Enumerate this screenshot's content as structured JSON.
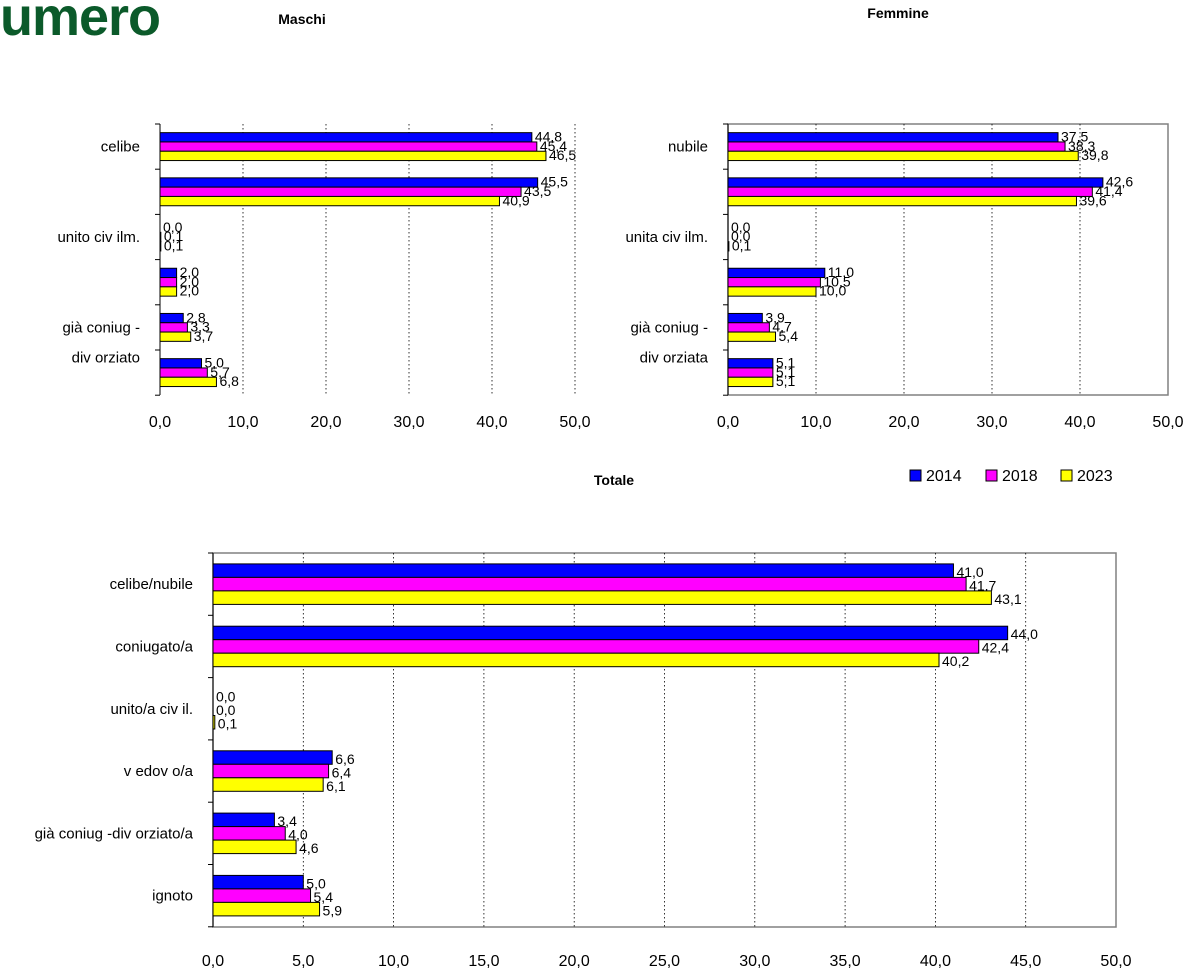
{
  "page": {
    "title": "umero"
  },
  "colors": {
    "2014": "#0000ff",
    "2018": "#ff00ff",
    "2023": "#ffff00",
    "outline": "#000000",
    "frame": "#808080"
  },
  "chart_data": [
    {
      "type": "bar",
      "orientation": "horizontal",
      "title": "Maschi",
      "categories": [
        "celibe",
        "",
        "unito civilm.",
        "",
        "già coniug -divorziato",
        ""
      ],
      "category_labels": [
        {
          "index": 0,
          "text": "celibe"
        },
        {
          "index": 2,
          "text": "unito civ ilm."
        },
        {
          "index": 4,
          "text": [
            "già coniug -",
            "div orziato"
          ]
        }
      ],
      "series": [
        {
          "name": "2014",
          "values": [
            44.8,
            45.5,
            0.0,
            2.0,
            2.8,
            5.0
          ],
          "labels": [
            "44,8",
            "45,5",
            "0,0",
            "2,0",
            "2,8",
            "5,0"
          ]
        },
        {
          "name": "2018",
          "values": [
            45.4,
            43.5,
            0.1,
            2.0,
            3.3,
            5.7
          ],
          "labels": [
            "45,4",
            "43,5",
            "0,1",
            "2,0",
            "3,3",
            "5,7"
          ]
        },
        {
          "name": "2023",
          "values": [
            46.5,
            40.9,
            0.1,
            2.0,
            3.7,
            6.8
          ],
          "labels": [
            "46,5",
            "40,9",
            "0,1",
            "2,0",
            "3,7",
            "6,8"
          ]
        }
      ],
      "xlim": [
        0,
        50
      ],
      "xticks": [
        0,
        10,
        20,
        30,
        40,
        50
      ],
      "xtick_labels": [
        "0,0",
        "10,0",
        "20,0",
        "30,0",
        "40,0",
        "50,0"
      ],
      "grid": "vertical dotted",
      "frame": false
    },
    {
      "type": "bar",
      "orientation": "horizontal",
      "title": "Femmine",
      "categories": [
        "nubile",
        "",
        "unita civilm.",
        "",
        "già coniug -divorziata",
        ""
      ],
      "category_labels": [
        {
          "index": 0,
          "text": "nubile"
        },
        {
          "index": 2,
          "text": "unita civ ilm."
        },
        {
          "index": 4,
          "text": [
            "già coniug -",
            "div orziata"
          ]
        }
      ],
      "series": [
        {
          "name": "2014",
          "values": [
            37.5,
            42.6,
            0.0,
            11.0,
            3.9,
            5.1
          ],
          "labels": [
            "37,5",
            "42,6",
            "0,0",
            "11,0",
            "3,9",
            "5,1"
          ]
        },
        {
          "name": "2018",
          "values": [
            38.3,
            41.4,
            0.0,
            10.5,
            4.7,
            5.1
          ],
          "labels": [
            "38,3",
            "41,4",
            "0,0",
            "10,5",
            "4,7",
            "5,1"
          ]
        },
        {
          "name": "2023",
          "values": [
            39.8,
            39.6,
            0.1,
            10.0,
            5.4,
            5.1
          ],
          "labels": [
            "39,8",
            "39,6",
            "0,1",
            "10,0",
            "5,4",
            "5,1"
          ]
        }
      ],
      "xlim": [
        0,
        50
      ],
      "xticks": [
        0,
        10,
        20,
        30,
        40,
        50
      ],
      "xtick_labels": [
        "0,0",
        "10,0",
        "20,0",
        "30,0",
        "40,0",
        "50,0"
      ],
      "grid": "vertical dotted",
      "frame": true
    },
    {
      "type": "bar",
      "orientation": "horizontal",
      "title": "Totale",
      "categories": [
        "celibe/nubile",
        "coniugato/a",
        "unito/a civil.",
        "vedovo/a",
        "già coniug -divorziato/a",
        "ignoto"
      ],
      "category_labels": [
        {
          "index": 0,
          "text": "celibe/nubile"
        },
        {
          "index": 1,
          "text": "coniugato/a"
        },
        {
          "index": 2,
          "text": "unito/a civ il."
        },
        {
          "index": 3,
          "text": "v edov o/a"
        },
        {
          "index": 4,
          "text": "già coniug -div orziato/a"
        },
        {
          "index": 5,
          "text": "ignoto"
        }
      ],
      "series": [
        {
          "name": "2014",
          "values": [
            41.0,
            44.0,
            0.0,
            6.6,
            3.4,
            5.0
          ],
          "labels": [
            "41,0",
            "44,0",
            "0,0",
            "6,6",
            "3,4",
            "5,0"
          ]
        },
        {
          "name": "2018",
          "values": [
            41.7,
            42.4,
            0.0,
            6.4,
            4.0,
            5.4
          ],
          "labels": [
            "41,7",
            "42,4",
            "0,0",
            "6,4",
            "4,0",
            "5,4"
          ]
        },
        {
          "name": "2023",
          "values": [
            43.1,
            40.2,
            0.1,
            6.1,
            4.6,
            5.9
          ],
          "labels": [
            "43,1",
            "40,2",
            "0,1",
            "6,1",
            "4,6",
            "5,9"
          ]
        }
      ],
      "xlim": [
        0,
        50
      ],
      "xticks": [
        0,
        5,
        10,
        15,
        20,
        25,
        30,
        35,
        40,
        45,
        50
      ],
      "xtick_labels": [
        "0,0",
        "5,0",
        "10,0",
        "15,0",
        "20,0",
        "25,0",
        "30,0",
        "35,0",
        "40,0",
        "45,0",
        "50,0"
      ],
      "grid": "vertical dotted",
      "frame": true
    }
  ],
  "legend": {
    "placement": "top-right of Totale chart",
    "items": [
      "2014",
      "2018",
      "2023"
    ]
  }
}
